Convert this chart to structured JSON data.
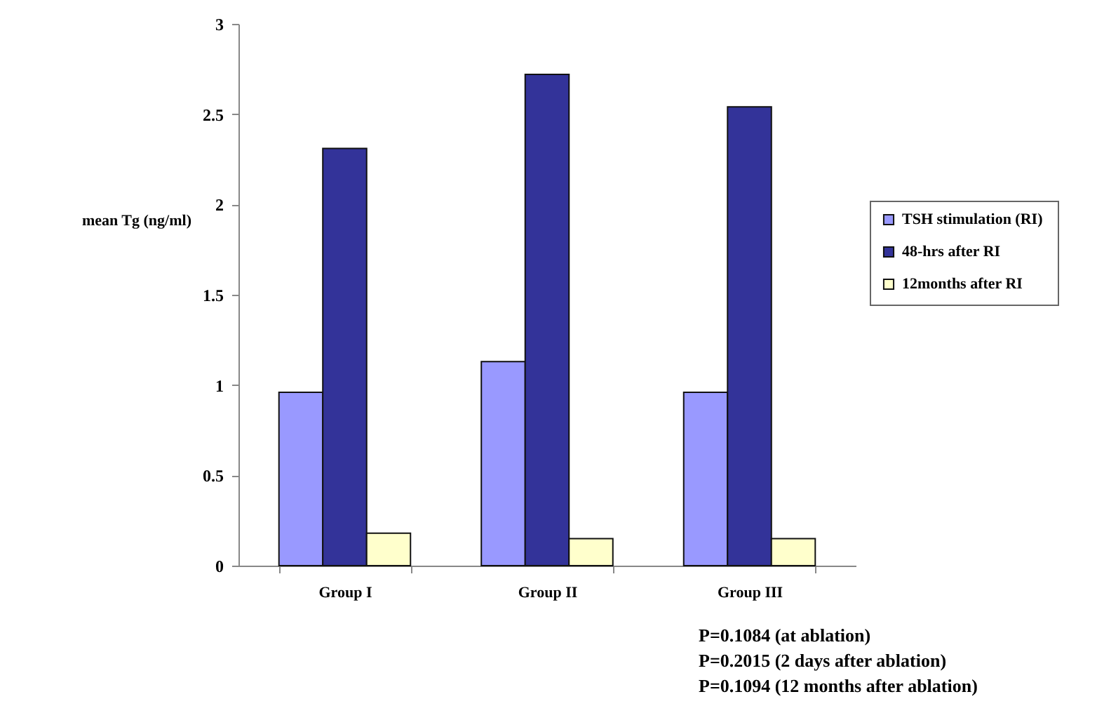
{
  "chart_data": {
    "type": "bar",
    "ylabel": "mean Tg (ng/ml)",
    "categories": [
      "Group I",
      "Group II",
      "Group III"
    ],
    "series": [
      {
        "name": "TSH stimulation  (RI)",
        "color": "#9999ff",
        "values": [
          0.96,
          1.13,
          0.96
        ]
      },
      {
        "name": "48-hrs after RI",
        "color": "#333399",
        "values": [
          2.31,
          2.72,
          2.54
        ]
      },
      {
        "name": "12months after RI",
        "color": "#ffffcc",
        "values": [
          0.18,
          0.15,
          0.15
        ]
      }
    ],
    "ylim": [
      0,
      3
    ],
    "yticks": [
      0,
      0.5,
      1,
      1.5,
      2,
      2.5,
      3
    ],
    "grid": false,
    "legend": "right",
    "annotations": [
      "P=0.1084 (at ablation)",
      "P=0.2015 (2 days after ablation)",
      "P=0.1094 (12 months after ablation)"
    ]
  }
}
